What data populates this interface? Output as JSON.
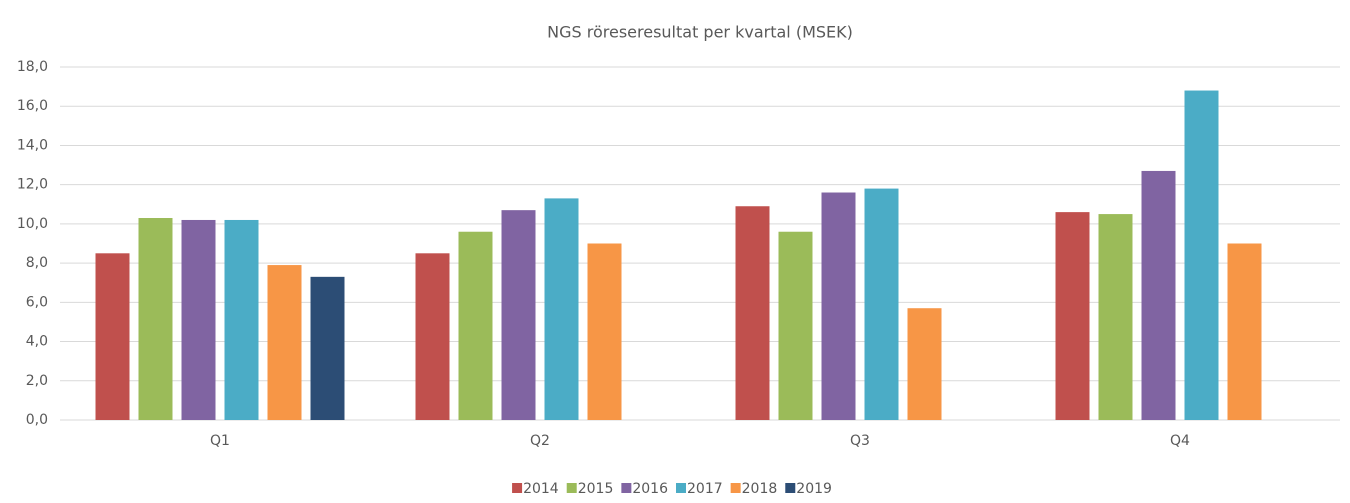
{
  "chart_data": {
    "type": "bar",
    "title": "NGS röreseresultat per kvartal (MSEK)",
    "categories": [
      "Q1",
      "Q2",
      "Q3",
      "Q4"
    ],
    "series": [
      {
        "name": "2014",
        "color": "#c0504d",
        "values": [
          8.5,
          8.5,
          10.9,
          10.6
        ]
      },
      {
        "name": "2015",
        "color": "#9bbb59",
        "values": [
          10.3,
          9.6,
          9.6,
          10.5
        ]
      },
      {
        "name": "2016",
        "color": "#8064a2",
        "values": [
          10.2,
          10.7,
          11.6,
          12.7
        ]
      },
      {
        "name": "2017",
        "color": "#4bacc6",
        "values": [
          10.2,
          11.3,
          11.8,
          16.8
        ]
      },
      {
        "name": "2018",
        "color": "#f79646",
        "values": [
          7.9,
          9.0,
          5.7,
          9.0
        ]
      },
      {
        "name": "2019",
        "color": "#2c4d75",
        "values": [
          7.3,
          null,
          null,
          null
        ]
      }
    ],
    "ylim": [
      0,
      18
    ],
    "yticks": [
      {
        "value": 0,
        "label": "0,0"
      },
      {
        "value": 2,
        "label": "2,0"
      },
      {
        "value": 4,
        "label": "4,0"
      },
      {
        "value": 6,
        "label": "6,0"
      },
      {
        "value": 8,
        "label": "8,0"
      },
      {
        "value": 10,
        "label": "10,0"
      },
      {
        "value": 12,
        "label": "12,0"
      },
      {
        "value": 14,
        "label": "14,0"
      },
      {
        "value": 16,
        "label": "16,0"
      },
      {
        "value": 18,
        "label": "18,0"
      }
    ],
    "grid": true,
    "legend": "bottom"
  }
}
